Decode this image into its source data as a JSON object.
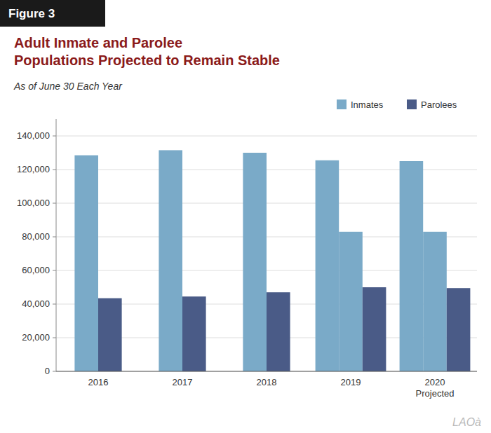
{
  "chart_data": {
    "type": "bar",
    "title": "Adult Inmate and Parolee\nPopulations Projected to Remain Stable",
    "subtitle": "As of June 30 Each Year",
    "annotations": [
      {
        "text": "Figure 3"
      },
      {
        "text": "LAOà"
      }
    ],
    "categories": [
      "2016",
      "2017",
      "2018",
      "2019",
      "2020\nProjected"
    ],
    "series": [
      {
        "name": "Inmates",
        "color": "#7aaac8",
        "values": [
          128500,
          131500,
          130000,
          125500,
          125000
        ]
      },
      {
        "name": "Inmates",
        "color": "#7aaac8",
        "values": [
          null,
          null,
          null,
          83000,
          83000
        ]
      },
      {
        "name": "Parolees",
        "color": "#4a5b87",
        "values": [
          43500,
          44500,
          47000,
          50000,
          49500
        ]
      }
    ],
    "ylim": [
      0,
      150000
    ],
    "yticks": [
      0,
      {
        "value": 20000,
        "label": "20,000"
      },
      {
        "value": 40000,
        "label": "40,000"
      },
      {
        "value": 60000,
        "label": "60,000"
      },
      {
        "value": 80000,
        "label": "80,000"
      },
      {
        "value": 100000,
        "label": "100,000"
      },
      {
        "value": 120000,
        "label": "120,000"
      },
      {
        "value": 140000,
        "label": "140,000"
      }
    ],
    "grid": true,
    "legend": "upper right"
  }
}
